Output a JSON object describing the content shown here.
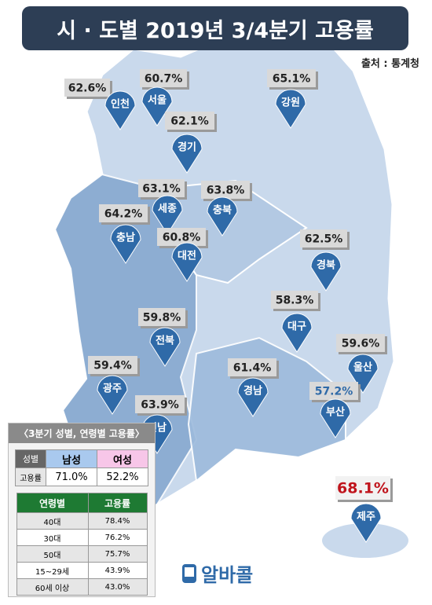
{
  "header": {
    "title": "시 · 도별 2019년 3/4분기 고용률",
    "source": "출처 : 통계청"
  },
  "regions": [
    {
      "name": "인천",
      "rate": "62.6%"
    },
    {
      "name": "서울",
      "rate": "60.7%"
    },
    {
      "name": "경기",
      "rate": "62.1%"
    },
    {
      "name": "강원",
      "rate": "65.1%"
    },
    {
      "name": "세종",
      "rate": "63.1%"
    },
    {
      "name": "충북",
      "rate": "63.8%"
    },
    {
      "name": "충남",
      "rate": "64.2%"
    },
    {
      "name": "대전",
      "rate": "60.8%"
    },
    {
      "name": "경북",
      "rate": "62.5%"
    },
    {
      "name": "대구",
      "rate": "58.3%"
    },
    {
      "name": "전북",
      "rate": "59.8%"
    },
    {
      "name": "울산",
      "rate": "59.6%"
    },
    {
      "name": "광주",
      "rate": "59.4%"
    },
    {
      "name": "경남",
      "rate": "61.4%"
    },
    {
      "name": "부산",
      "rate": "57.2%"
    },
    {
      "name": "전남",
      "rate": "63.9%"
    },
    {
      "name": "제주",
      "rate": "68.1%"
    }
  ],
  "panel": {
    "title": "〈3분기 성별, 연령별 고용률〉",
    "gender_table": {
      "header": [
        "성별",
        "남성",
        "여성"
      ],
      "rows": [
        [
          "고용률",
          "71.0%",
          "52.2%"
        ]
      ]
    },
    "age_table": {
      "header": [
        "연령별",
        "고용률"
      ],
      "rows": [
        [
          "40대",
          "78.4%"
        ],
        [
          "30대",
          "76.2%"
        ],
        [
          "50대",
          "75.7%"
        ],
        [
          "15~29세",
          "43.9%"
        ],
        [
          "60세 이상",
          "43.0%"
        ]
      ]
    }
  },
  "footer": {
    "logo": "알바콜"
  }
}
